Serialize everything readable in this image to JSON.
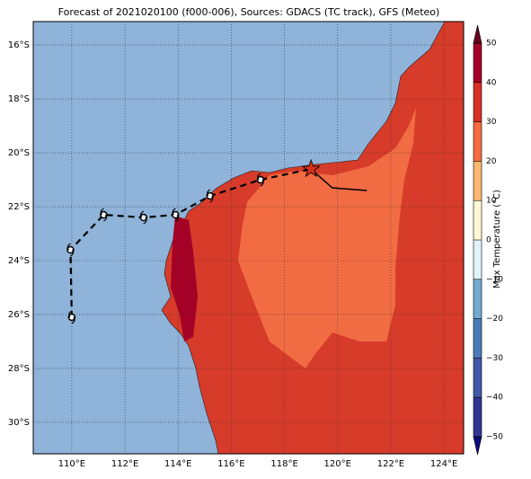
{
  "chart_data": {
    "type": "map",
    "title": "Forecast of 2021020100 (f000-006), Sources: GDACS (TC track), GFS (Meteo)",
    "xlim": [
      108.55,
      124.74
    ],
    "ylim": [
      -31.17,
      -15.13
    ],
    "xticks": [
      {
        "value": 110,
        "label": "110°E"
      },
      {
        "value": 112,
        "label": "112°E"
      },
      {
        "value": 114,
        "label": "114°E"
      },
      {
        "value": 116,
        "label": "116°E"
      },
      {
        "value": 118,
        "label": "118°E"
      },
      {
        "value": 120,
        "label": "120°E"
      },
      {
        "value": 122,
        "label": "122°E"
      },
      {
        "value": 124,
        "label": "124°E"
      }
    ],
    "yticks": [
      {
        "value": -16,
        "label": "16°S"
      },
      {
        "value": -18,
        "label": "18°S"
      },
      {
        "value": -20,
        "label": "20°S"
      },
      {
        "value": -22,
        "label": "22°S"
      },
      {
        "value": -24,
        "label": "24°S"
      },
      {
        "value": -26,
        "label": "26°S"
      },
      {
        "value": -28,
        "label": "28°S"
      },
      {
        "value": -30,
        "label": "30°S"
      }
    ],
    "grid": true,
    "track": {
      "lon": [
        110.0,
        109.95,
        111.2,
        112.7,
        113.9,
        115.2,
        117.1,
        119.0
      ],
      "lat": [
        -26.1,
        -23.6,
        -22.3,
        -22.4,
        -22.3,
        -21.6,
        -21.0,
        -20.6
      ]
    },
    "forecast_track": {
      "lon": [
        119.0,
        119.8,
        121.1
      ],
      "lat": [
        -20.6,
        -21.3,
        -21.4
      ]
    },
    "colorbar": {
      "label": "Max Temperature (°C)",
      "lim": [
        -50,
        50
      ],
      "ticks": [
        {
          "value": -50,
          "label": "−50"
        },
        {
          "value": -40,
          "label": "−40"
        },
        {
          "value": -30,
          "label": "−30"
        },
        {
          "value": -20,
          "label": "−20"
        },
        {
          "value": -10,
          "label": "−10"
        },
        0,
        10,
        20,
        30,
        40,
        50
      ],
      "colors": [
        "#313695",
        "#4159a6",
        "#4a7bb7",
        "#74a9cf",
        "#e0f3f8",
        "#fff7d5",
        "#fdb76e",
        "#f46d43",
        "#d73027",
        "#a50026"
      ]
    }
  }
}
